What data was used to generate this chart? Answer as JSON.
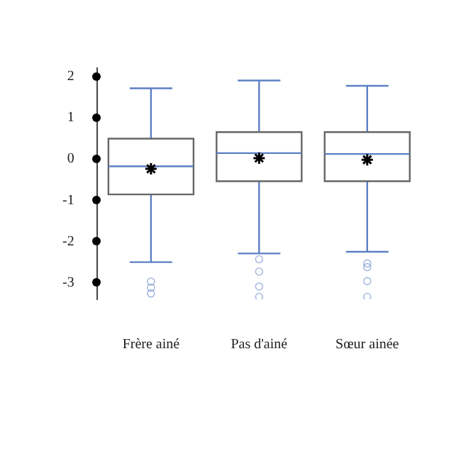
{
  "chart_data": {
    "type": "box",
    "categories": [
      "Frère ainé",
      "Pas d'ainé",
      "Sœur ainée"
    ],
    "color": "#666666",
    "boxes": [
      {
        "low": -2.5,
        "q1": -0.86,
        "median": -0.18,
        "q3": 0.49,
        "high": 1.71,
        "mean": -0.24,
        "outliers": [
          -2.97,
          -3.12,
          -3.26
        ]
      },
      {
        "low": -2.29,
        "q1": -0.54,
        "median": 0.14,
        "q3": 0.65,
        "high": 1.9,
        "mean": 0.02,
        "outliers": [
          -2.43,
          -2.73,
          -3.09,
          -3.34
        ]
      },
      {
        "low": -2.25,
        "q1": -0.54,
        "median": 0.12,
        "q3": 0.65,
        "high": 1.77,
        "mean": -0.02,
        "outliers": [
          -2.53,
          -2.62,
          -2.96,
          -3.34
        ]
      }
    ],
    "ylim": [
      -3.4,
      2.2
    ],
    "yticks": [
      -3,
      -2,
      -1,
      0,
      1,
      2
    ],
    "grid": false,
    "legend": false,
    "marker": "circle"
  }
}
